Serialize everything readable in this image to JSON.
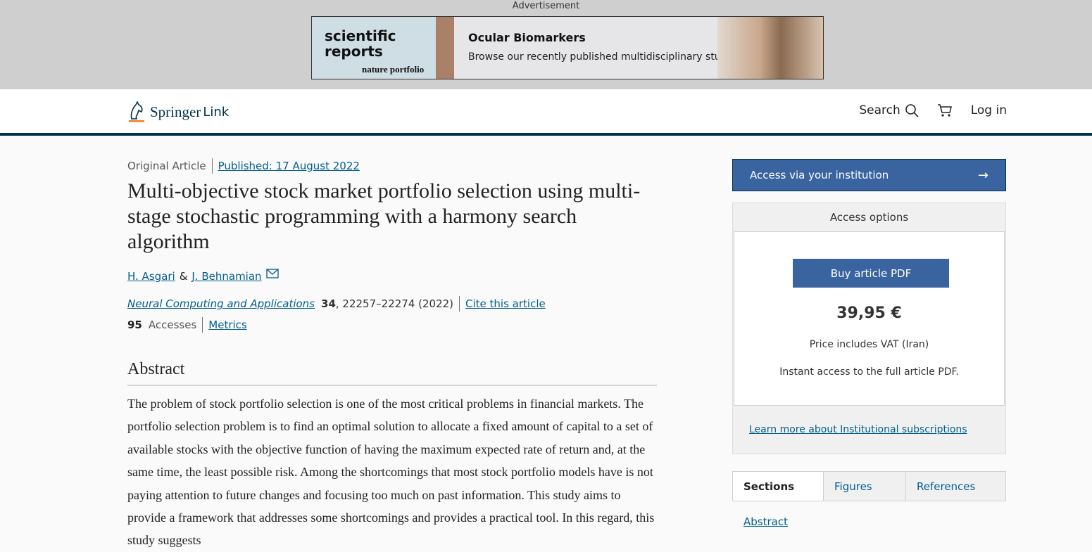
{
  "ad": {
    "label": "Advertisement",
    "brand": "scientific reports",
    "portfolio": "nature portfolio",
    "headline": "Ocular Biomarkers",
    "subline": "Browse our recently published multidisciplinary studies"
  },
  "header": {
    "logo": [
      "Springer",
      "Link"
    ],
    "nav": [
      "Search",
      "Log in"
    ]
  },
  "article": {
    "type": "Original Article",
    "published": "Published: 17 August 2022",
    "title": "Multi-objective stock market portfolio selection using multi-stage stochastic programming with a harmony search algorithm",
    "authors": [
      "H. Asgari",
      "J. Behnamian"
    ],
    "author_separator": "&",
    "journal": "Neural Computing and Applications",
    "volume": "34",
    "pages": ", 22257–22274 (2022)",
    "cite": "Cite this article",
    "accesses": "95",
    "accesses_label": "Accesses",
    "metrics": "Metrics",
    "abstract_heading": "Abstract",
    "abstract": "The problem of stock portfolio selection is one of the most critical problems in financial markets. The portfolio selection problem is to find an optimal solution to allocate a fixed amount of capital to a set of available stocks with the objective function of having the maximum expected rate of return and, at the same time, the least possible risk. Among the shortcomings that most stock portfolio models have is not paying attention to future changes and focusing too much on past information. This study aims to provide a framework that addresses some shortcomings and provides a practical tool. In this regard, this study suggests"
  },
  "sidebar": {
    "institution": "Access via your institution",
    "arrow": "→",
    "access_options": "Access options",
    "buy": "Buy article PDF",
    "price": "39,95 €",
    "vat": "Price includes VAT (Iran)",
    "instant": "Instant access to the full article PDF.",
    "learn_more": "Learn more about Institutional subscriptions",
    "tabs": [
      "Sections",
      "Figures",
      "References"
    ],
    "toc": [
      "Abstract"
    ]
  }
}
